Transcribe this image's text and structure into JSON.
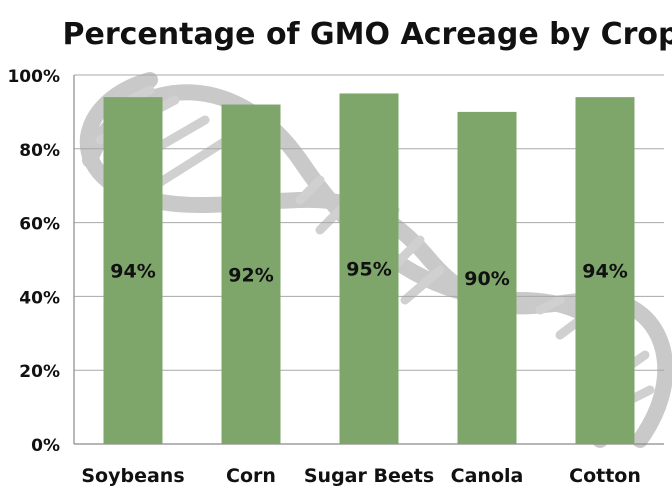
{
  "chart_data": {
    "type": "bar",
    "title": "Percentage of GMO Acreage by Crop",
    "xlabel": "",
    "ylabel": "",
    "categories": [
      "Soybeans",
      "Corn",
      "Sugar Beets",
      "Canola",
      "Cotton"
    ],
    "values": [
      94,
      92,
      95,
      90,
      94
    ],
    "data_labels": [
      "94%",
      "92%",
      "95%",
      "90%",
      "94%"
    ],
    "ylim": [
      0,
      100
    ],
    "yticks": [
      0,
      20,
      40,
      60,
      80,
      100
    ],
    "ytick_labels": [
      "0%",
      "20%",
      "40%",
      "60%",
      "80%",
      "100%"
    ],
    "grid": true,
    "legend": "none",
    "bar_color": "#7ea66b",
    "decoration": "dna-helix-background",
    "decoration_color": "#c8c8c8"
  }
}
